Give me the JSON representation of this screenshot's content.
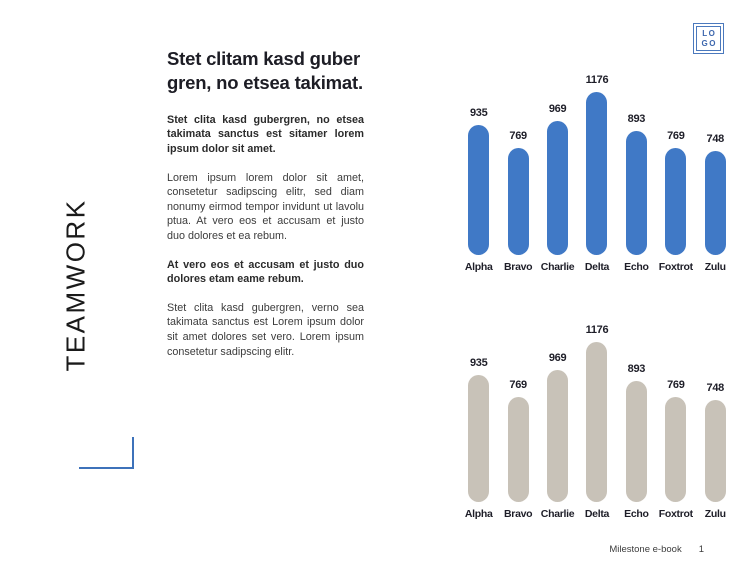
{
  "page": {
    "vertical_title": "TEAMWORK",
    "logo": {
      "line1": "LO",
      "line2": "GO"
    },
    "footer": {
      "book_label": "Milestone e-book",
      "page_number": "1"
    }
  },
  "article": {
    "heading": "Stet clitam kasd guber gren, no etsea takimat.",
    "paragraphs": [
      {
        "emphasis": "bold",
        "text": "Stet clita kasd gubergren, no etsea takimata sanctus est sitamer lorem ipsum dolor sit amet."
      },
      {
        "emphasis": "normal",
        "text": "Lorem ipsum lorem dolor sit amet, consetetur sadipscing elitr, sed diam nonumy eirmod tempor invidunt ut lavolu ptua. At vero eos et accusam et justo duo dolores et ea rebum."
      },
      {
        "emphasis": "bold",
        "text": "At vero eos et accusam et justo duo dolores etam eame rebum."
      },
      {
        "emphasis": "normal",
        "text": "Stet clita kasd gubergren, verno sea takimata sanctus est Lorem ipsum dolor sit amet dolores set vero. Lorem ipsum consetetur sadipscing elitr."
      }
    ]
  },
  "chart_data": [
    {
      "type": "bar",
      "categories": [
        "Alpha",
        "Bravo",
        "Charlie",
        "Delta",
        "Echo",
        "Foxtrot",
        "Zulu"
      ],
      "values": [
        935,
        769,
        969,
        1176,
        893,
        769,
        748
      ],
      "title": "",
      "xlabel": "",
      "ylabel": "",
      "ylim": [
        0,
        1176
      ],
      "grid": false,
      "legend": "none",
      "axes_shown": false,
      "value_labels": true,
      "bar_style": "rounded-pill",
      "bar_color": "#4079c6"
    },
    {
      "type": "bar",
      "categories": [
        "Alpha",
        "Bravo",
        "Charlie",
        "Delta",
        "Echo",
        "Foxtrot",
        "Zulu"
      ],
      "values": [
        935,
        769,
        969,
        1176,
        893,
        769,
        748
      ],
      "title": "",
      "xlabel": "",
      "ylabel": "",
      "ylim": [
        0,
        1176
      ],
      "grid": false,
      "legend": "none",
      "axes_shown": false,
      "value_labels": true,
      "bar_style": "rounded-pill",
      "bar_color": "#c8c2b8"
    }
  ],
  "colors": {
    "accent_blue": "#4079c6",
    "bar_gray": "#c8c2b8",
    "logo_blue": "#4b79bd",
    "bracket_blue": "#3d72ba",
    "heading_text": "#1d1d25",
    "body_text": "#3c3c3c"
  }
}
